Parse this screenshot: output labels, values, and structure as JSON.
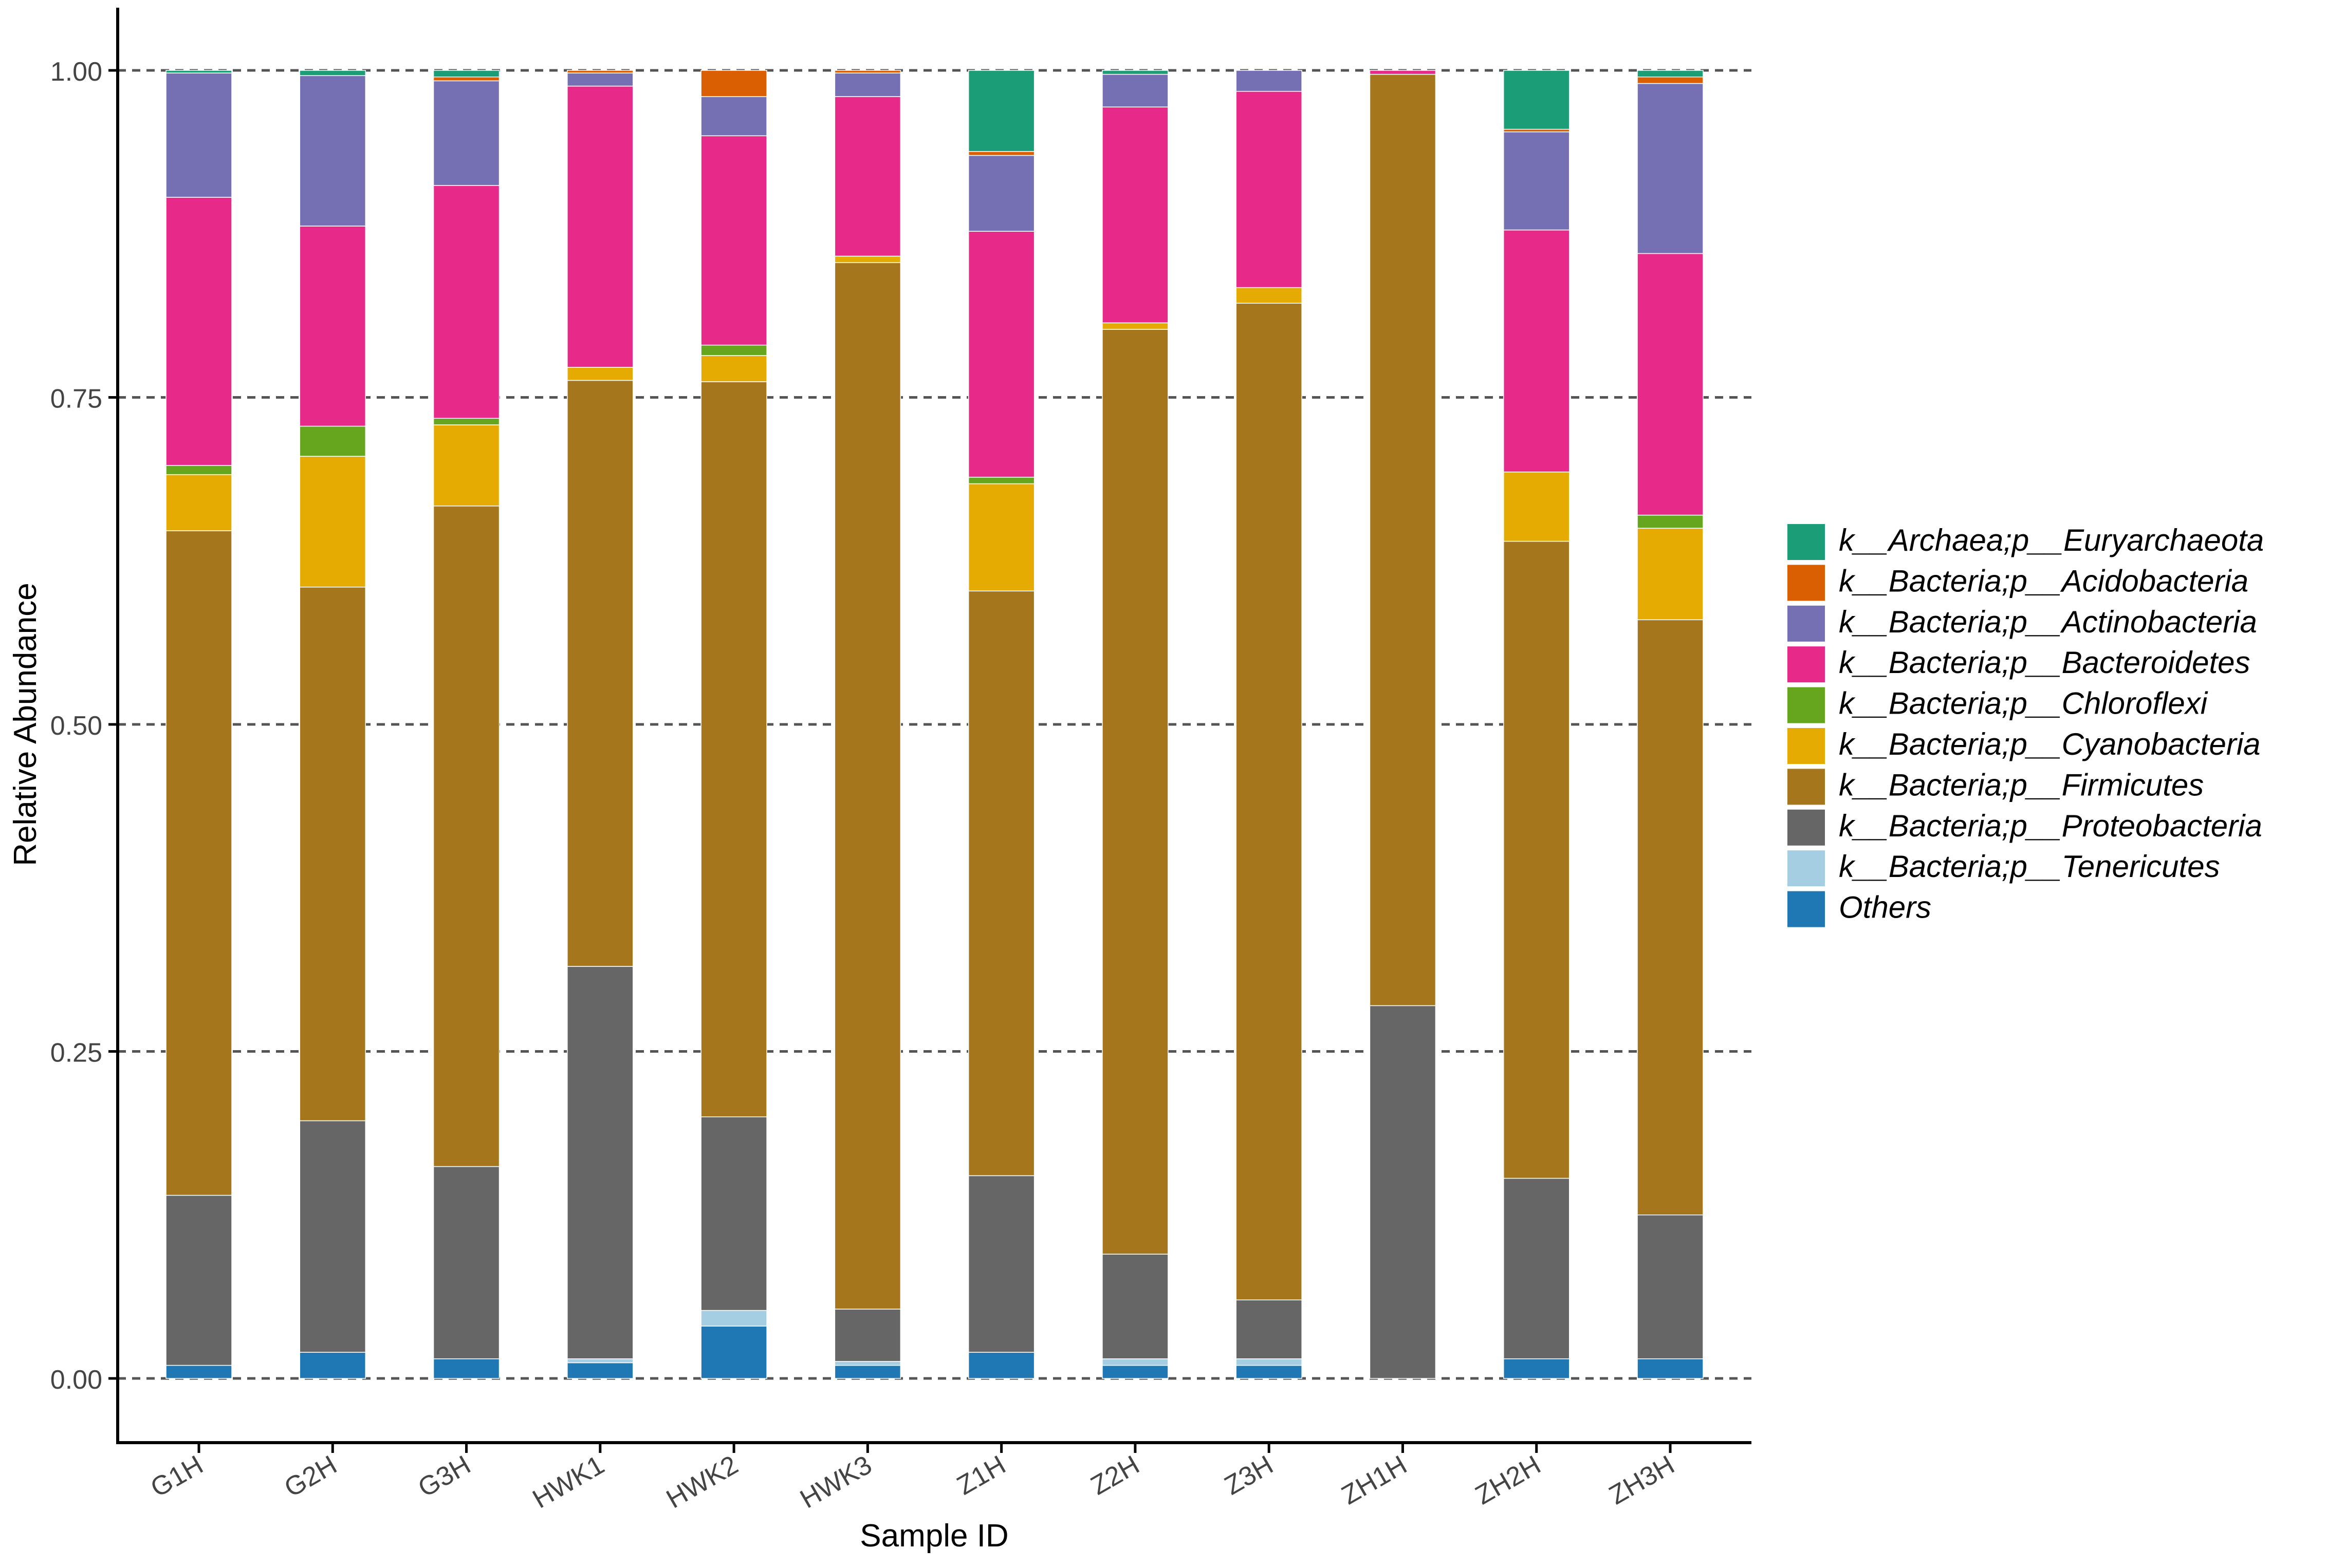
{
  "chart_data": {
    "type": "bar",
    "stacked": true,
    "title": "",
    "xlabel": "Sample ID",
    "ylabel": "Relative Abundance",
    "ylim": [
      -0.05,
      1.05
    ],
    "yticks": [
      0.0,
      0.25,
      0.5,
      0.75,
      1.0
    ],
    "ytick_labels": [
      "0.00",
      "0.25",
      "0.50",
      "0.75",
      "1.00"
    ],
    "grid": "horizontal dashed at y ticks",
    "legend_position": "right",
    "categories": [
      "G1H",
      "G2H",
      "G3H",
      "HWK1",
      "HWK2",
      "HWK3",
      "Z1H",
      "Z2H",
      "Z3H",
      "ZH1H",
      "ZH2H",
      "ZH3H"
    ],
    "series": [
      {
        "name": "Others",
        "color": "#1f78b4",
        "values": [
          0.01,
          0.02,
          0.015,
          0.012,
          0.04,
          0.01,
          0.02,
          0.01,
          0.01,
          0.0,
          0.015,
          0.015
        ]
      },
      {
        "name": "k__Bacteria;p__Tenericutes",
        "color": "#a6cee3",
        "values": [
          0.0,
          0.0,
          0.0,
          0.003,
          0.012,
          0.003,
          0.0,
          0.005,
          0.005,
          0.0,
          0.0,
          0.0
        ]
      },
      {
        "name": "k__Bacteria;p__Proteobacteria",
        "color": "#666666",
        "values": [
          0.13,
          0.177,
          0.147,
          0.3,
          0.148,
          0.04,
          0.135,
          0.08,
          0.045,
          0.285,
          0.138,
          0.11
        ]
      },
      {
        "name": "k__Bacteria;p__Firmicutes",
        "color": "#a6761d",
        "values": [
          0.508,
          0.408,
          0.505,
          0.448,
          0.562,
          0.8,
          0.447,
          0.707,
          0.762,
          0.712,
          0.487,
          0.455
        ]
      },
      {
        "name": "k__Bacteria;p__Cyanobacteria",
        "color": "#e6ab02",
        "values": [
          0.043,
          0.1,
          0.062,
          0.01,
          0.02,
          0.005,
          0.082,
          0.005,
          0.012,
          0.0,
          0.053,
          0.07
        ]
      },
      {
        "name": "k__Bacteria;p__Chloroflexi",
        "color": "#66a61e",
        "values": [
          0.007,
          0.023,
          0.005,
          0.0,
          0.008,
          0.0,
          0.005,
          0.0,
          0.0,
          0.0,
          0.0,
          0.01
        ]
      },
      {
        "name": "k__Bacteria;p__Bacteroidetes",
        "color": "#e7298a",
        "values": [
          0.205,
          0.153,
          0.178,
          0.215,
          0.16,
          0.122,
          0.188,
          0.165,
          0.15,
          0.003,
          0.185,
          0.2
        ]
      },
      {
        "name": "k__Bacteria;p__Actinobacteria",
        "color": "#7570b3",
        "values": [
          0.095,
          0.115,
          0.08,
          0.01,
          0.03,
          0.018,
          0.058,
          0.025,
          0.016,
          0.0,
          0.075,
          0.13
        ]
      },
      {
        "name": "k__Bacteria;p__Acidobacteria",
        "color": "#d95f02",
        "values": [
          0.0,
          0.0,
          0.003,
          0.002,
          0.02,
          0.002,
          0.003,
          0.0,
          0.0,
          0.0,
          0.002,
          0.005
        ]
      },
      {
        "name": "k__Archaea;p__Euryarchaeota",
        "color": "#1b9e77",
        "values": [
          0.002,
          0.004,
          0.005,
          0.0,
          0.0,
          0.0,
          0.062,
          0.003,
          0.0,
          0.0,
          0.045,
          0.005
        ]
      }
    ],
    "legend_entries": [
      {
        "kingdom": "k__Archaea;",
        "phylum": "p__Euryarchaeota",
        "color": "#1b9e77"
      },
      {
        "kingdom": "k__Bacteria;",
        "phylum": "p__Acidobacteria",
        "color": "#d95f02"
      },
      {
        "kingdom": "k__Bacteria;",
        "phylum": "p__Actinobacteria",
        "color": "#7570b3"
      },
      {
        "kingdom": "k__Bacteria;",
        "phylum": "p__Bacteroidetes",
        "color": "#e7298a"
      },
      {
        "kingdom": "k__Bacteria;",
        "phylum": "p__Chloroflexi",
        "color": "#66a61e"
      },
      {
        "kingdom": "k__Bacteria;",
        "phylum": "p__Cyanobacteria",
        "color": "#e6ab02"
      },
      {
        "kingdom": "k__Bacteria;",
        "phylum": "p__Firmicutes",
        "color": "#a6761d"
      },
      {
        "kingdom": "k__Bacteria;",
        "phylum": "p__Proteobacteria",
        "color": "#666666"
      },
      {
        "kingdom": "k__Bacteria;",
        "phylum": "p__Tenericutes",
        "color": "#a6cee3"
      },
      {
        "kingdom": "",
        "phylum": "Others",
        "color": "#1f78b4"
      }
    ]
  }
}
